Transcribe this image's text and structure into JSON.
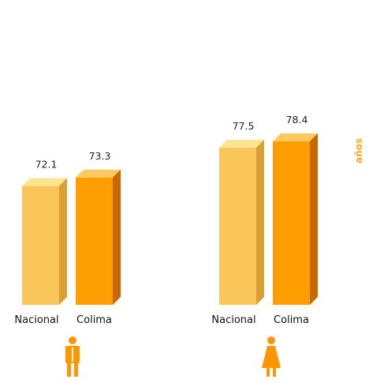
{
  "chart_data": {
    "type": "bar",
    "categories": [
      "Nacional",
      "Colima"
    ],
    "series": [
      {
        "values": [
          72.1,
          73.3
        ]
      },
      {
        "values": [
          77.5,
          78.4
        ]
      }
    ],
    "ylabel": "años",
    "groups": [
      {
        "icon": "male-icon",
        "values": [
          72.1,
          73.3
        ]
      },
      {
        "icon": "female-icon",
        "values": [
          77.5,
          78.4
        ]
      }
    ],
    "colors": {
      "nacional": {
        "front": "#FAC65A",
        "top": "#FBE492",
        "side": "#D8A032"
      },
      "colima": {
        "front": "#FF9E00",
        "top": "#FFC960",
        "side": "#C86800"
      },
      "icon": "#FF9500",
      "unit_label": "#FFA726"
    }
  }
}
